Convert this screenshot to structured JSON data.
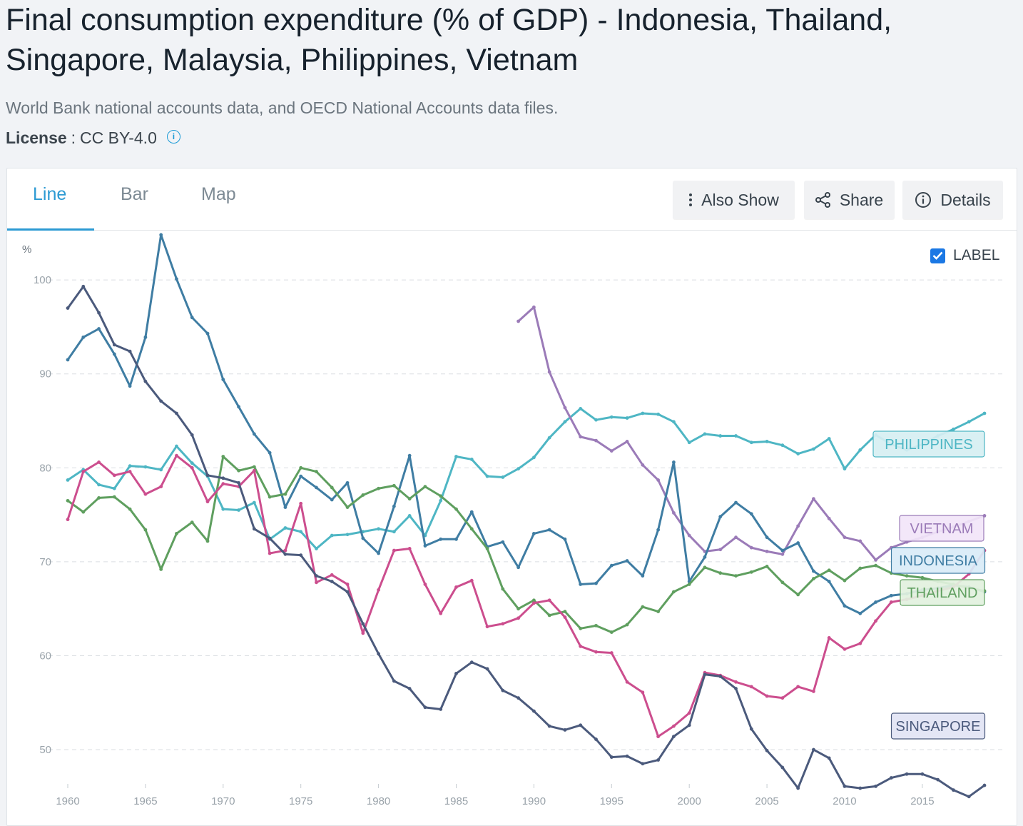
{
  "page": {
    "title": "Final consumption expenditure (% of GDP) - Indonesia, Thailand, Singapore, Malaysia, Philippines, Vietnam",
    "source": "World Bank national accounts data, and OECD National Accounts data files.",
    "license_label": "License",
    "license_value": "CC BY-4.0"
  },
  "tabs": [
    {
      "label": "Line",
      "active": true
    },
    {
      "label": "Bar",
      "active": false
    },
    {
      "label": "Map",
      "active": false
    }
  ],
  "toolbar": {
    "also_show": "Also Show",
    "share": "Share",
    "details": "Details"
  },
  "label_toggle": {
    "label": "LABEL",
    "checked": true
  },
  "icons": {
    "info": "info-circle-icon",
    "kebab": "vertical-dots-icon",
    "share": "share-icon",
    "details": "info-circle-icon",
    "check": "checkmark-icon"
  },
  "chart_data": {
    "type": "line",
    "yunit": "%",
    "ylim": [
      44,
      107
    ],
    "xlim": [
      1960,
      2019
    ],
    "yticks": [
      50,
      60,
      70,
      80,
      90,
      100
    ],
    "xticks": [
      1960,
      1965,
      1970,
      1975,
      1980,
      1985,
      1990,
      1995,
      2000,
      2005,
      2010,
      2015
    ],
    "grid": true,
    "series": [
      {
        "name": "PHILIPPINES",
        "color": "#4eb6c4",
        "labelFill": "#d6eff2",
        "start": 1960,
        "values": [
          78.7,
          79.8,
          78.2,
          77.8,
          80.2,
          80.1,
          79.8,
          82.3,
          80.5,
          79.1,
          75.6,
          75.5,
          76.3,
          72.4,
          73.6,
          73.2,
          71.4,
          72.8,
          72.9,
          73.2,
          73.5,
          73.2,
          74.9,
          72.8,
          76.5,
          81.2,
          80.9,
          79.1,
          79.0,
          79.9,
          81.1,
          83.2,
          84.9,
          86.3,
          85.1,
          85.4,
          85.3,
          85.8,
          85.7,
          84.9,
          82.7,
          83.6,
          83.4,
          83.4,
          82.7,
          82.8,
          82.4,
          81.5,
          82.0,
          83.1,
          79.9,
          81.9,
          83.5,
          82.5,
          81.9,
          82.5,
          83.4,
          84.1,
          84.9,
          85.8
        ]
      },
      {
        "name": "VIETNAM",
        "color": "#9b7bb8",
        "labelFill": "#f2e5f8",
        "start": 1989,
        "values": [
          95.6,
          97.1,
          90.2,
          86.4,
          83.3,
          82.9,
          81.8,
          82.8,
          80.3,
          78.7,
          75.2,
          72.8,
          71.1,
          71.3,
          72.6,
          71.5,
          71.1,
          70.8,
          73.8,
          76.7,
          74.6,
          72.6,
          72.2,
          70.2,
          71.5,
          72.1,
          72.6,
          73.2,
          73.7,
          74.3,
          74.9
        ]
      },
      {
        "name": "INDONESIA",
        "color": "#3f7da3",
        "labelFill": "#d9ebf7",
        "start": 1960,
        "values": [
          91.5,
          93.9,
          94.8,
          92.1,
          88.7,
          93.9,
          104.8,
          100.1,
          96.0,
          94.3,
          89.4,
          86.5,
          83.6,
          81.6,
          75.8,
          79.1,
          77.9,
          76.6,
          78.4,
          72.5,
          70.9,
          75.9,
          81.3,
          71.7,
          72.4,
          72.4,
          75.3,
          71.6,
          72.1,
          69.4,
          73.0,
          73.4,
          72.4,
          67.6,
          67.7,
          69.6,
          70.1,
          68.5,
          73.4,
          80.6,
          67.9,
          70.5,
          74.8,
          76.3,
          75.1,
          72.6,
          71.2,
          72.0,
          69.0,
          67.9,
          65.3,
          64.5,
          65.7,
          66.4,
          66.6,
          67.0,
          67.2,
          67.5,
          67.3,
          66.8
        ]
      },
      {
        "name": "THAILAND",
        "color": "#5f9f5f",
        "labelFill": "#e2f1de",
        "start": 1960,
        "values": [
          76.5,
          75.3,
          76.8,
          76.9,
          75.6,
          73.4,
          69.2,
          73.0,
          74.2,
          72.2,
          81.2,
          79.7,
          80.1,
          76.9,
          77.2,
          80.0,
          79.6,
          77.9,
          75.8,
          77.1,
          77.8,
          78.1,
          76.7,
          78.0,
          77.0,
          75.6,
          73.5,
          71.4,
          67.1,
          65.0,
          65.9,
          64.3,
          64.7,
          62.9,
          63.2,
          62.5,
          63.3,
          65.2,
          64.7,
          66.8,
          67.6,
          69.4,
          68.8,
          68.5,
          68.9,
          69.5,
          67.8,
          66.5,
          68.2,
          69.1,
          68.0,
          69.3,
          69.6,
          68.8,
          68.5,
          68.3,
          67.9,
          67.6,
          67.2,
          66.9
        ]
      },
      {
        "name": "MALAYSIA",
        "color": "#cc4e8e",
        "labelFill": "#fae0ea",
        "start": 1960,
        "values": [
          74.5,
          79.6,
          80.6,
          79.2,
          79.6,
          77.2,
          78.0,
          81.3,
          80.0,
          76.4,
          78.3,
          78.0,
          79.7,
          70.9,
          71.2,
          76.2,
          67.8,
          68.6,
          67.6,
          62.4,
          67.0,
          71.2,
          71.4,
          67.6,
          64.5,
          67.3,
          68.0,
          63.1,
          63.4,
          64.0,
          65.6,
          65.9,
          64.1,
          61.0,
          60.4,
          60.3,
          57.2,
          56.1,
          51.4,
          52.5,
          53.9,
          58.2,
          57.9,
          57.2,
          56.7,
          55.7,
          55.5,
          56.7,
          56.2,
          61.9,
          60.7,
          61.3,
          63.7,
          65.7,
          66.0,
          66.4,
          66.9,
          67.3,
          68.7,
          71.2
        ]
      },
      {
        "name": "SINGAPORE",
        "color": "#4b5a7c",
        "labelFill": "#e2e4f4",
        "start": 1960,
        "values": [
          97.0,
          99.3,
          96.5,
          93.1,
          92.4,
          89.2,
          87.1,
          85.8,
          83.5,
          79.2,
          78.9,
          78.4,
          73.5,
          72.5,
          70.8,
          70.7,
          68.5,
          67.9,
          66.8,
          63.4,
          60.2,
          57.3,
          56.5,
          54.5,
          54.3,
          58.1,
          59.3,
          58.6,
          56.3,
          55.5,
          54.1,
          52.5,
          52.1,
          52.6,
          51.1,
          49.2,
          49.3,
          48.5,
          48.9,
          51.4,
          52.6,
          58.0,
          57.8,
          56.5,
          52.2,
          49.9,
          48.1,
          45.9,
          50.0,
          49.1,
          46.1,
          45.9,
          46.1,
          47.0,
          47.4,
          47.4,
          46.8,
          45.7,
          45.0,
          46.2
        ]
      }
    ],
    "labels_shown": [
      "PHILIPPINES",
      "VIETNAM",
      "INDONESIA",
      "THAILAND",
      "SINGAPORE"
    ]
  }
}
